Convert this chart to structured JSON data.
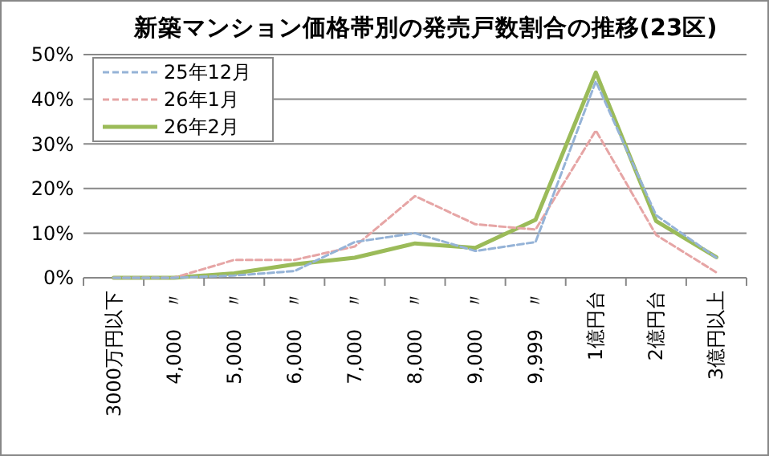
{
  "chart_data": {
    "type": "line",
    "title": "新築マンション価格帯別の発売戸数割合の推移(23区)",
    "categories": [
      "3000万円以下",
      "4,000　〃",
      "5,000　〃",
      "6,000　〃",
      "7,000　〃",
      "8,000　〃",
      "9,000　〃",
      "9,999　〃",
      "1億円台",
      "2億円台",
      "3億円以上"
    ],
    "series": [
      {
        "name": "25年12月",
        "color": "#95b3d7",
        "line_style": "dashed",
        "values": [
          0,
          0,
          0.5,
          1.5,
          8,
          10,
          6,
          8,
          44,
          14,
          4.5
        ]
      },
      {
        "name": "26年1月",
        "color": "#e6a5a5",
        "line_style": "dashed",
        "values": [
          0,
          0,
          4,
          4,
          7,
          18.3,
          12,
          10.8,
          33,
          9.6,
          1.2
        ]
      },
      {
        "name": "26年2月",
        "color": "#9bbb59",
        "line_style": "solid",
        "values": [
          0,
          0,
          1,
          3,
          4.5,
          7.7,
          6.7,
          13,
          46,
          12.7,
          4.6
        ]
      }
    ],
    "ylim": [
      0,
      50
    ],
    "yticks": [
      {
        "value": 0,
        "label": "0%"
      },
      {
        "value": 10,
        "label": "10%"
      },
      {
        "value": 20,
        "label": "20%"
      },
      {
        "value": 30,
        "label": "30%"
      },
      {
        "value": 40,
        "label": "40%"
      },
      {
        "value": 50,
        "label": "50%"
      }
    ],
    "grid": "y",
    "legend": "top left",
    "marker": "none"
  }
}
